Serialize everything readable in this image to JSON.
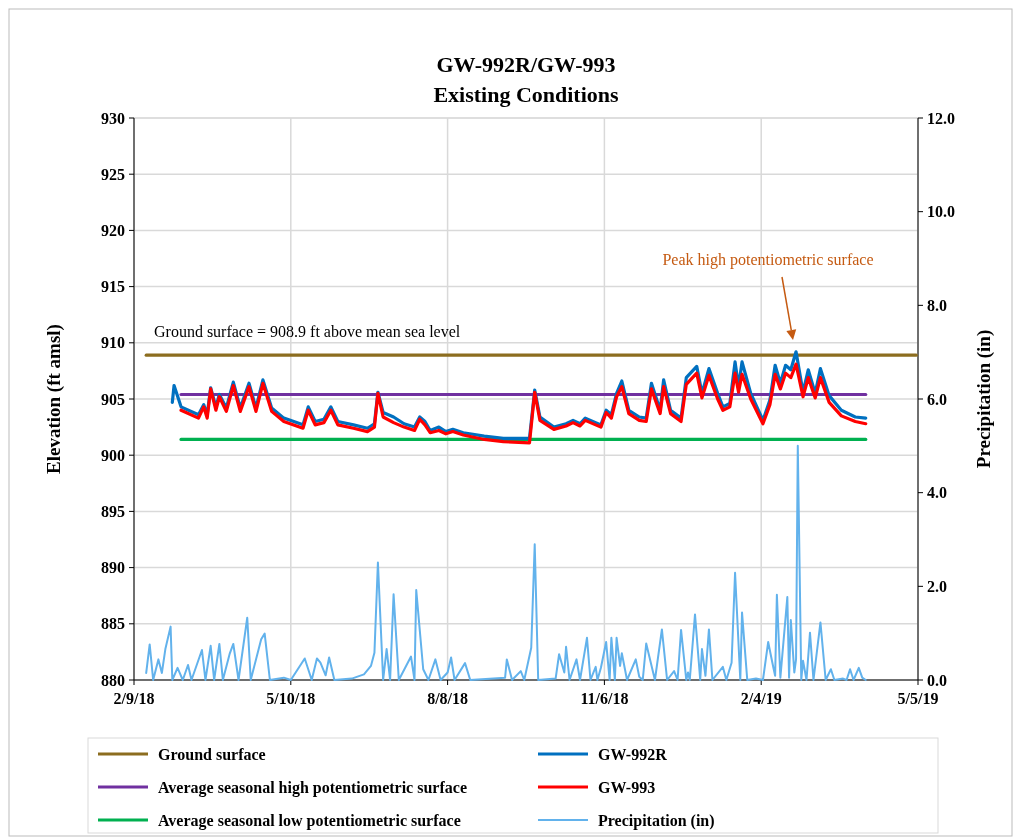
{
  "chart_data": {
    "type": "line",
    "title": "GW-992R/GW-993",
    "subtitle": "Existing Conditions",
    "ylabel": "Elevation (ft amsl)",
    "y2label": "Precipitation (in)",
    "xlim": [
      "2018-02-09",
      "2019-05-05"
    ],
    "xticks": [
      {
        "value": "2018-02-09",
        "label": "2/9/18"
      },
      {
        "value": "2018-05-10",
        "label": "5/10/18"
      },
      {
        "value": "2018-08-08",
        "label": "8/8/18"
      },
      {
        "value": "2018-11-06",
        "label": "11/6/18"
      },
      {
        "value": "2019-02-04",
        "label": "2/4/19"
      },
      {
        "value": "2019-05-05",
        "label": "5/5/19"
      }
    ],
    "ylim": [
      880,
      930
    ],
    "yticks": [
      880,
      885,
      890,
      895,
      900,
      905,
      910,
      915,
      920,
      925,
      930
    ],
    "y2lim": [
      0,
      12
    ],
    "y2ticks": [
      {
        "value": 0,
        "label": "0.0"
      },
      {
        "value": 2,
        "label": "2.0"
      },
      {
        "value": 4,
        "label": "4.0"
      },
      {
        "value": 6,
        "label": "6.0"
      },
      {
        "value": 8,
        "label": "8.0"
      },
      {
        "value": 10,
        "label": "10.0"
      },
      {
        "value": 12,
        "label": "12.0"
      }
    ],
    "grid": true,
    "legend": "bottom",
    "annotations": [
      "Ground surface = 908.9 ft above mean sea level",
      "Peak high potentiometric surface"
    ],
    "series": [
      {
        "name": "Ground surface",
        "color": "#8c6d1f",
        "x": [
          "2018-02-16",
          "2019-05-04"
        ],
        "values": [
          908.9,
          908.9
        ]
      },
      {
        "name": "Average seasonal high potentiometric surface",
        "color": "#7030a0",
        "x": [
          "2018-03-08",
          "2019-04-05"
        ],
        "values": [
          905.4,
          905.4
        ]
      },
      {
        "name": "Average seasonal low potentiometric surface",
        "color": "#00b050",
        "x": [
          "2018-03-08",
          "2019-04-05"
        ],
        "values": [
          901.4,
          901.4
        ]
      },
      {
        "name": "GW-992R",
        "color": "#0070c0",
        "x": [
          "2018-03-03",
          "2018-03-04",
          "2018-03-08",
          "2018-03-18",
          "2018-03-21",
          "2018-03-23",
          "2018-03-25",
          "2018-03-28",
          "2018-03-30",
          "2018-04-03",
          "2018-04-07",
          "2018-04-11",
          "2018-04-16",
          "2018-04-20",
          "2018-04-24",
          "2018-04-29",
          "2018-05-06",
          "2018-05-17",
          "2018-05-20",
          "2018-05-24",
          "2018-05-29",
          "2018-06-02",
          "2018-06-06",
          "2018-06-15",
          "2018-06-23",
          "2018-06-27",
          "2018-06-29",
          "2018-07-02",
          "2018-07-08",
          "2018-07-14",
          "2018-07-20",
          "2018-07-23",
          "2018-07-26",
          "2018-07-29",
          "2018-08-03",
          "2018-08-07",
          "2018-08-11",
          "2018-08-17",
          "2018-08-29",
          "2018-09-09",
          "2018-09-24",
          "2018-09-27",
          "2018-09-30",
          "2018-10-08",
          "2018-10-15",
          "2018-10-19",
          "2018-10-23",
          "2018-10-26",
          "2018-11-04",
          "2018-11-07",
          "2018-11-10",
          "2018-11-13",
          "2018-11-16",
          "2018-11-20",
          "2018-11-26",
          "2018-11-30",
          "2018-12-03",
          "2018-12-08",
          "2018-12-10",
          "2018-12-14",
          "2018-12-20",
          "2018-12-23",
          "2018-12-29",
          "2019-01-01",
          "2019-01-05",
          "2019-01-10",
          "2019-01-13",
          "2019-01-17",
          "2019-01-20",
          "2019-01-22",
          "2019-01-24",
          "2019-01-29",
          "2019-02-05",
          "2019-02-09",
          "2019-02-12",
          "2019-02-15",
          "2019-02-18",
          "2019-02-21",
          "2019-02-24",
          "2019-02-28",
          "2019-03-03",
          "2019-03-07",
          "2019-03-10",
          "2019-03-15",
          "2019-03-22",
          "2019-03-30",
          "2019-04-05"
        ],
        "values": [
          904.7,
          906.2,
          904.3,
          903.6,
          904.5,
          903.6,
          906.0,
          904.3,
          905.4,
          904.2,
          906.5,
          904.2,
          906.4,
          904.2,
          906.7,
          904.2,
          903.3,
          902.7,
          904.3,
          903.0,
          903.2,
          904.3,
          903.0,
          902.7,
          902.4,
          902.8,
          905.6,
          903.8,
          903.4,
          902.8,
          902.5,
          903.4,
          903.0,
          902.2,
          902.5,
          902.1,
          902.3,
          902.0,
          901.7,
          901.5,
          901.5,
          905.8,
          903.4,
          902.5,
          902.8,
          903.1,
          902.8,
          903.3,
          902.7,
          904.0,
          903.6,
          905.5,
          906.6,
          904.0,
          903.4,
          903.3,
          906.4,
          904.0,
          906.7,
          904.0,
          903.3,
          906.9,
          907.9,
          905.5,
          907.7,
          905.5,
          904.3,
          904.6,
          908.3,
          906.1,
          908.3,
          905.5,
          903.1,
          904.9,
          908.0,
          906.4,
          908.0,
          907.6,
          909.2,
          905.6,
          907.6,
          905.5,
          907.7,
          905.3,
          904.0,
          903.4,
          903.3
        ]
      },
      {
        "name": "GW-993",
        "color": "#ff0000",
        "x": [
          "2018-03-08",
          "2018-03-18",
          "2018-03-21",
          "2018-03-23",
          "2018-03-25",
          "2018-03-28",
          "2018-03-30",
          "2018-04-03",
          "2018-04-07",
          "2018-04-11",
          "2018-04-16",
          "2018-04-20",
          "2018-04-24",
          "2018-04-29",
          "2018-05-06",
          "2018-05-17",
          "2018-05-20",
          "2018-05-24",
          "2018-05-29",
          "2018-06-02",
          "2018-06-06",
          "2018-06-15",
          "2018-06-23",
          "2018-06-27",
          "2018-06-29",
          "2018-07-02",
          "2018-07-08",
          "2018-07-14",
          "2018-07-20",
          "2018-07-23",
          "2018-07-26",
          "2018-07-29",
          "2018-08-03",
          "2018-08-07",
          "2018-08-11",
          "2018-08-17",
          "2018-08-29",
          "2018-09-09",
          "2018-09-24",
          "2018-09-27",
          "2018-09-30",
          "2018-10-08",
          "2018-10-15",
          "2018-10-19",
          "2018-10-23",
          "2018-10-26",
          "2018-11-04",
          "2018-11-07",
          "2018-11-10",
          "2018-11-13",
          "2018-11-16",
          "2018-11-20",
          "2018-11-26",
          "2018-11-30",
          "2018-12-03",
          "2018-12-08",
          "2018-12-10",
          "2018-12-14",
          "2018-12-20",
          "2018-12-23",
          "2018-12-29",
          "2019-01-01",
          "2019-01-05",
          "2019-01-10",
          "2019-01-13",
          "2019-01-17",
          "2019-01-20",
          "2019-01-22",
          "2019-01-24",
          "2019-01-29",
          "2019-02-05",
          "2019-02-09",
          "2019-02-12",
          "2019-02-15",
          "2019-02-18",
          "2019-02-21",
          "2019-02-24",
          "2019-02-28",
          "2019-03-03",
          "2019-03-07",
          "2019-03-10",
          "2019-03-15",
          "2019-03-22",
          "2019-03-30",
          "2019-04-05"
        ],
        "values": [
          904.0,
          903.3,
          904.3,
          903.3,
          905.9,
          904.0,
          905.2,
          903.9,
          906.2,
          903.9,
          906.1,
          903.9,
          906.4,
          903.9,
          903.0,
          902.4,
          904.0,
          902.7,
          902.9,
          904.0,
          902.7,
          902.4,
          902.1,
          902.5,
          905.5,
          903.4,
          902.9,
          902.5,
          902.2,
          903.2,
          902.7,
          902.0,
          902.2,
          901.9,
          902.1,
          901.8,
          901.4,
          901.2,
          901.1,
          905.6,
          903.1,
          902.3,
          902.6,
          902.9,
          902.6,
          903.1,
          902.5,
          903.8,
          903.3,
          905.2,
          906.1,
          903.7,
          903.1,
          903.0,
          905.9,
          903.7,
          906.1,
          903.7,
          903.0,
          906.3,
          907.3,
          905.1,
          907.1,
          905.0,
          904.0,
          904.3,
          907.3,
          905.6,
          907.2,
          905.0,
          902.8,
          904.5,
          907.2,
          905.9,
          907.3,
          906.9,
          908.1,
          905.2,
          906.9,
          905.1,
          906.9,
          904.7,
          903.5,
          903.0,
          902.8
        ]
      },
      {
        "name": "Precipitation (in)",
        "color": "#62b2ec",
        "axis": "y2",
        "x": [
          "2018-02-16",
          "2018-02-18",
          "2018-02-20",
          "2018-02-23",
          "2018-02-25",
          "2018-02-27",
          "2018-03-02",
          "2018-03-03",
          "2018-03-06",
          "2018-03-09",
          "2018-03-12",
          "2018-03-14",
          "2018-03-20",
          "2018-03-22",
          "2018-03-25",
          "2018-03-27",
          "2018-03-30",
          "2018-04-01",
          "2018-04-05",
          "2018-04-07",
          "2018-04-10",
          "2018-04-15",
          "2018-04-17",
          "2018-04-23",
          "2018-04-25",
          "2018-04-28",
          "2018-05-06",
          "2018-05-10",
          "2018-05-18",
          "2018-05-22",
          "2018-05-25",
          "2018-05-27",
          "2018-05-30",
          "2018-06-01",
          "2018-06-04",
          "2018-06-14",
          "2018-06-21",
          "2018-06-25",
          "2018-06-27",
          "2018-06-29",
          "2018-07-02",
          "2018-07-04",
          "2018-07-06",
          "2018-07-08",
          "2018-07-11",
          "2018-07-18",
          "2018-07-20",
          "2018-07-21",
          "2018-07-25",
          "2018-07-28",
          "2018-08-01",
          "2018-08-04",
          "2018-08-08",
          "2018-08-10",
          "2018-08-12",
          "2018-08-18",
          "2018-08-21",
          "2018-09-10",
          "2018-09-11",
          "2018-09-14",
          "2018-09-19",
          "2018-09-21",
          "2018-09-25",
          "2018-09-27",
          "2018-09-29",
          "2018-10-09",
          "2018-10-11",
          "2018-10-14",
          "2018-10-15",
          "2018-10-17",
          "2018-10-21",
          "2018-10-23",
          "2018-10-27",
          "2018-10-29",
          "2018-11-01",
          "2018-11-02",
          "2018-11-04",
          "2018-11-07",
          "2018-11-09",
          "2018-11-10",
          "2018-11-12",
          "2018-11-13",
          "2018-11-15",
          "2018-11-16",
          "2018-11-19",
          "2018-11-24",
          "2018-11-26",
          "2018-11-28",
          "2018-11-30",
          "2018-12-05",
          "2018-12-09",
          "2018-12-12",
          "2018-12-16",
          "2018-12-18",
          "2018-12-20",
          "2018-12-23",
          "2018-12-24",
          "2018-12-25",
          "2018-12-28",
          "2018-12-31",
          "2019-01-01",
          "2019-01-03",
          "2019-01-05",
          "2019-01-07",
          "2019-01-13",
          "2019-01-15",
          "2019-01-18",
          "2019-01-20",
          "2019-01-23",
          "2019-01-24",
          "2019-01-27",
          "2019-02-01",
          "2019-02-05",
          "2019-02-08",
          "2019-02-11",
          "2019-02-12",
          "2019-02-13",
          "2019-02-15",
          "2019-02-19",
          "2019-02-20",
          "2019-02-21",
          "2019-02-23",
          "2019-02-24",
          "2019-02-25",
          "2019-02-27",
          "2019-02-28",
          "2019-03-02",
          "2019-03-04",
          "2019-03-06",
          "2019-03-10",
          "2019-03-13",
          "2019-03-16",
          "2019-03-18",
          "2019-03-23",
          "2019-03-25",
          "2019-03-27",
          "2019-03-29",
          "2019-04-01",
          "2019-04-03",
          "2019-04-05"
        ],
        "values": [
          0.15,
          0.76,
          0,
          0.44,
          0.15,
          0.66,
          1.14,
          0,
          0.26,
          0,
          0.32,
          0,
          0.64,
          0,
          0.73,
          0,
          0.77,
          0,
          0.57,
          0.77,
          0,
          1.33,
          0,
          0.87,
          0.99,
          0,
          0.05,
          0,
          0.46,
          0,
          0.46,
          0.37,
          0.1,
          0.48,
          0,
          0.03,
          0.12,
          0.3,
          0.58,
          2.51,
          0,
          0.66,
          0,
          1.83,
          0,
          0.5,
          0,
          1.92,
          0.23,
          0,
          0.44,
          0,
          0.16,
          0.48,
          0,
          0.36,
          0,
          0.05,
          0.44,
          0,
          0.19,
          0,
          0.69,
          2.9,
          0,
          0.03,
          0.55,
          0.16,
          0.71,
          0,
          0.44,
          0,
          0.9,
          0,
          0.28,
          0,
          0.26,
          0.81,
          0,
          0.9,
          0,
          0.9,
          0.3,
          0.57,
          0,
          0.44,
          0.07,
          0,
          0.78,
          0,
          1.08,
          0,
          0.19,
          0,
          1.07,
          0,
          0.16,
          0,
          1.4,
          0,
          0.66,
          0.09,
          1.08,
          0,
          0.28,
          0,
          0.37,
          2.29,
          0,
          1.44,
          0,
          0.03,
          0,
          0.81,
          0.26,
          0.09,
          1.82,
          0.05,
          1.77,
          0.05,
          1.28,
          0.16,
          0.44,
          5.0,
          0,
          0.41,
          0,
          1.01,
          0,
          1.23,
          0,
          0.23,
          0,
          0.03,
          0,
          0.23,
          0,
          0.26,
          0.05,
          0
        ]
      }
    ]
  }
}
